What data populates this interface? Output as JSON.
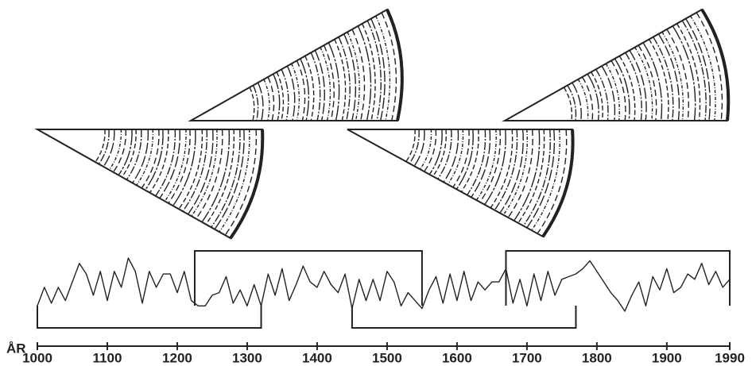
{
  "chart_data": {
    "type": "line",
    "xlabel": "ÅR",
    "xlim": [
      1000,
      1990
    ],
    "xticks": [
      1000,
      1100,
      1200,
      1300,
      1400,
      1500,
      1600,
      1700,
      1800,
      1900,
      1990
    ],
    "color": "#222222",
    "x": [
      1000,
      1010,
      1020,
      1030,
      1040,
      1050,
      1060,
      1070,
      1080,
      1090,
      1100,
      1110,
      1120,
      1130,
      1140,
      1150,
      1160,
      1170,
      1180,
      1190,
      1200,
      1210,
      1220,
      1230,
      1240,
      1250,
      1260,
      1270,
      1280,
      1290,
      1300,
      1310,
      1320,
      1330,
      1340,
      1350,
      1360,
      1370,
      1380,
      1390,
      1400,
      1410,
      1420,
      1430,
      1440,
      1450,
      1460,
      1470,
      1480,
      1490,
      1500,
      1510,
      1520,
      1530,
      1540,
      1550,
      1560,
      1570,
      1580,
      1590,
      1600,
      1610,
      1620,
      1630,
      1640,
      1650,
      1660,
      1670,
      1680,
      1690,
      1700,
      1710,
      1720,
      1730,
      1740,
      1750,
      1760,
      1770,
      1780,
      1790,
      1800,
      1810,
      1820,
      1830,
      1840,
      1850,
      1860,
      1870,
      1880,
      1890,
      1900,
      1910,
      1920,
      1930,
      1940,
      1950,
      1960,
      1970,
      1980,
      1990
    ],
    "values": [
      1,
      4.5,
      1.5,
      4.5,
      2,
      5.5,
      9,
      7,
      3,
      7.5,
      2,
      7.5,
      4.5,
      10,
      7.5,
      1.5,
      7.5,
      4.5,
      7,
      7,
      3.5,
      7.5,
      2,
      1,
      1,
      3,
      3.5,
      6.5,
      1.5,
      4,
      1,
      5,
      1,
      7,
      3,
      8,
      2,
      5,
      8.5,
      5.5,
      4.5,
      7.5,
      5,
      3.5,
      7,
      0.5,
      6,
      2,
      6,
      2,
      7.5,
      5.5,
      1,
      3.5,
      2,
      0.5,
      4,
      6.5,
      1.5,
      7,
      2,
      7.5,
      2,
      5.5,
      4,
      5.5,
      5.5,
      8,
      1.5,
      6,
      1,
      7,
      2,
      7.5,
      3,
      6,
      6.5,
      7,
      8,
      9.5,
      7.5,
      5.5,
      3.5,
      2,
      0,
      3,
      5.5,
      1,
      6.5,
      4,
      8,
      3.5,
      4.5,
      7,
      6,
      9,
      5,
      7.5,
      4.5,
      6
    ],
    "spans": [
      {
        "start": 1000,
        "end": 1320,
        "position": "below"
      },
      {
        "start": 1225,
        "end": 1550,
        "position": "above"
      },
      {
        "start": 1450,
        "end": 1770,
        "position": "below"
      },
      {
        "start": 1670,
        "end": 1990,
        "position": "above"
      }
    ]
  }
}
